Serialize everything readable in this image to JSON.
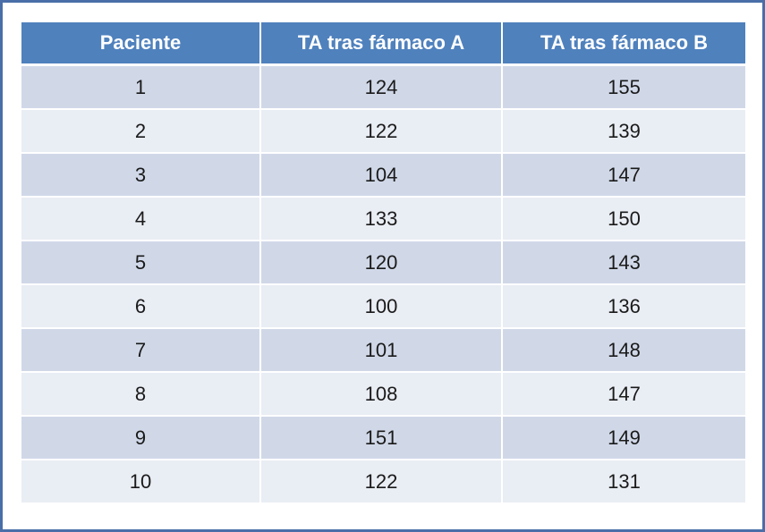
{
  "table": {
    "headers": [
      "Paciente",
      "TA tras fármaco A",
      "TA tras fármaco B"
    ],
    "rows": [
      [
        "1",
        "124",
        "155"
      ],
      [
        "2",
        "122",
        "139"
      ],
      [
        "3",
        "104",
        "147"
      ],
      [
        "4",
        "133",
        "150"
      ],
      [
        "5",
        "120",
        "143"
      ],
      [
        "6",
        "100",
        "136"
      ],
      [
        "7",
        "101",
        "148"
      ],
      [
        "8",
        "108",
        "147"
      ],
      [
        "9",
        "151",
        "149"
      ],
      [
        "10",
        "122",
        "131"
      ]
    ]
  },
  "colors": {
    "header_bg": "#4f81bd",
    "row_odd_bg": "#d0d8e8",
    "row_even_bg": "#e9edf4",
    "frame_border": "#4a6fa8"
  }
}
